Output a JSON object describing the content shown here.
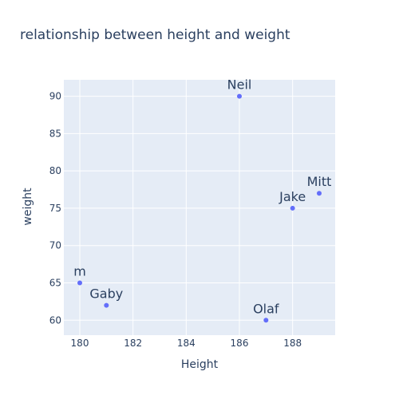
{
  "chart_data": {
    "type": "scatter",
    "title": "relationship between height and weight",
    "xlabel": "Height",
    "ylabel": "weight",
    "xlim": [
      179.4,
      189.6
    ],
    "ylim": [
      58,
      92.2
    ],
    "x_ticks": [
      180,
      182,
      184,
      186,
      188
    ],
    "y_ticks": [
      60,
      65,
      70,
      75,
      80,
      85,
      90
    ],
    "grid": true,
    "legend": "none",
    "marker_color": "#636efa",
    "plot_bg": "#e5ecf6",
    "grid_color": "#ffffff",
    "points": [
      {
        "label": "m",
        "x": 180,
        "y": 65
      },
      {
        "label": "Gaby",
        "x": 181,
        "y": 62
      },
      {
        "label": "Neil",
        "x": 186,
        "y": 90
      },
      {
        "label": "Olaf",
        "x": 187,
        "y": 60
      },
      {
        "label": "Jake",
        "x": 188,
        "y": 75
      },
      {
        "label": "Mitt",
        "x": 189,
        "y": 77
      }
    ]
  }
}
